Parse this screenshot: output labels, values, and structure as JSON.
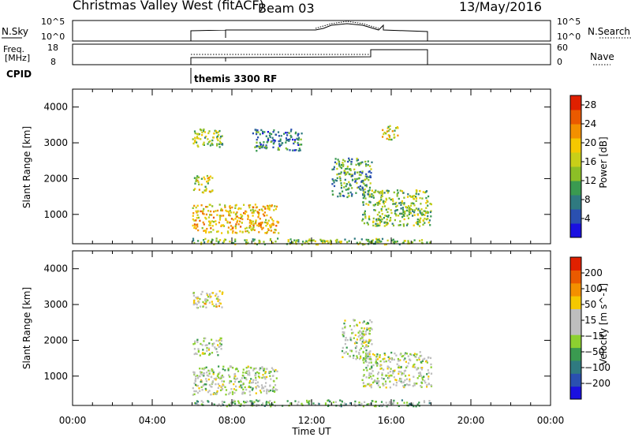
{
  "header": {
    "title": "Christmas Valley West (fitACF)",
    "beam": "Beam 03",
    "date": "13/May/2016"
  },
  "sky_panel": {
    "left_label": "N.Sky",
    "right_label": "N.Search",
    "left_ticks": [
      "10^5",
      "10^0"
    ],
    "right_ticks": [
      "10^5",
      "10^0"
    ]
  },
  "freq_panel": {
    "left_label_1": "Freq.",
    "left_label_2": "[MHz]",
    "right_label": "Nave",
    "left_ticks": [
      "18",
      "8"
    ],
    "right_ticks": [
      "60",
      "0"
    ]
  },
  "cpid": {
    "label": "CPID",
    "text": "themis 3300 RF"
  },
  "chart_data": [
    {
      "type": "heatmap",
      "name": "power",
      "ylabel": "Slant Range [km]",
      "ylim": [
        180,
        4500
      ],
      "yticks": [
        1000,
        2000,
        3000,
        4000
      ],
      "xlim": [
        0,
        24
      ],
      "data_extent_hours": [
        6,
        18
      ],
      "colorbar": {
        "label": "Power [dB]",
        "ticks": [
          4,
          8,
          12,
          16,
          20,
          24,
          28
        ],
        "range": [
          0,
          30
        ],
        "colors": [
          "#1a10e0",
          "#2a50b0",
          "#2f7a80",
          "#3a9a50",
          "#8cbf26",
          "#c8cf18",
          "#f5c800",
          "#f39000",
          "#ea5a00",
          "#e02000"
        ]
      },
      "regions": [
        {
          "t0": 6.0,
          "t1": 10.3,
          "r0": 500,
          "r1": 1300,
          "level": 20
        },
        {
          "t0": 6.0,
          "t1": 7.0,
          "r0": 1600,
          "r1": 2100,
          "level": 18
        },
        {
          "t0": 6.0,
          "t1": 7.5,
          "r0": 2900,
          "r1": 3400,
          "level": 14
        },
        {
          "t0": 9.0,
          "t1": 11.5,
          "r0": 2800,
          "r1": 3400,
          "level": 6
        },
        {
          "t0": 13.0,
          "t1": 15.0,
          "r0": 1500,
          "r1": 2600,
          "level": 10
        },
        {
          "t0": 14.5,
          "t1": 18.0,
          "r0": 700,
          "r1": 1700,
          "level": 14
        },
        {
          "t0": 15.5,
          "t1": 16.3,
          "r0": 3100,
          "r1": 3500,
          "level": 18
        },
        {
          "t0": 6.0,
          "t1": 18.0,
          "r0": 180,
          "r1": 350,
          "level": 12
        }
      ]
    },
    {
      "type": "heatmap",
      "name": "velocity",
      "ylabel": "Slant Range [km]",
      "ylim": [
        180,
        4500
      ],
      "yticks": [
        1000,
        2000,
        3000,
        4000
      ],
      "xlim": [
        0,
        24
      ],
      "data_extent_hours": [
        6,
        18
      ],
      "xticks": [
        "00:00",
        "04:00",
        "08:00",
        "12:00",
        "16:00",
        "20:00",
        "00:00"
      ],
      "xlabel": "Time UT",
      "colorbar": {
        "label": "Velocity [m s^-1]",
        "ticks": [
          "200",
          "100",
          "50",
          "15",
          "−15",
          "−50",
          "−100",
          "−200"
        ],
        "colors": [
          "#1a10e0",
          "#2a50b0",
          "#2f7a80",
          "#3a9a50",
          "#8cd030",
          "#bebebe",
          "#bebebe",
          "#f5c800",
          "#f39000",
          "#ea5a00",
          "#e02000"
        ]
      },
      "regions": [
        {
          "t0": 6.0,
          "t1": 10.3,
          "r0": 500,
          "r1": 1300,
          "level": 5
        },
        {
          "t0": 6.0,
          "t1": 7.5,
          "r0": 1600,
          "r1": 2100,
          "level": 5
        },
        {
          "t0": 6.0,
          "t1": 7.5,
          "r0": 2900,
          "r1": 3400,
          "level": 6
        },
        {
          "t0": 13.5,
          "t1": 15.0,
          "r0": 1500,
          "r1": 2600,
          "level": 5
        },
        {
          "t0": 14.5,
          "t1": 18.0,
          "r0": 700,
          "r1": 1700,
          "level": 5
        },
        {
          "t0": 6.0,
          "t1": 18.0,
          "r0": 180,
          "r1": 350,
          "level": 4
        }
      ]
    }
  ]
}
